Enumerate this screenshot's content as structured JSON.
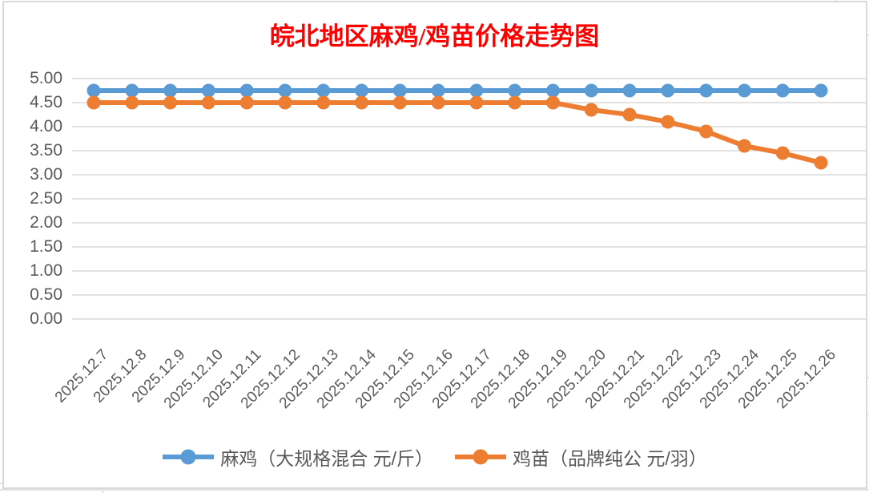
{
  "chart_data": {
    "type": "line",
    "title": "皖北地区麻鸡/鸡苗价格走势图",
    "title_color": "#FF0000",
    "categories": [
      "2025.12.7",
      "2025.12.8",
      "2025.12.9",
      "2025.12.10",
      "2025.12.11",
      "2025.12.12",
      "2025.12.13",
      "2025.12.14",
      "2025.12.15",
      "2025.12.16",
      "2025.12.17",
      "2025.12.18",
      "2025.12.19",
      "2025.12.20",
      "2025.12.21",
      "2025.12.22",
      "2025.12.23",
      "2025.12.24",
      "2025.12.25",
      "2025.12.26"
    ],
    "series": [
      {
        "name": "麻鸡（大规格混合 元/斤）",
        "color": "#5B9BD5",
        "values": [
          4.75,
          4.75,
          4.75,
          4.75,
          4.75,
          4.75,
          4.75,
          4.75,
          4.75,
          4.75,
          4.75,
          4.75,
          4.75,
          4.75,
          4.75,
          4.75,
          4.75,
          4.75,
          4.75,
          4.75
        ]
      },
      {
        "name": "鸡苗（品牌纯公 元/羽）",
        "color": "#ED7D31",
        "values": [
          4.5,
          4.5,
          4.5,
          4.5,
          4.5,
          4.5,
          4.5,
          4.5,
          4.5,
          4.5,
          4.5,
          4.5,
          4.5,
          4.35,
          4.25,
          4.1,
          3.9,
          3.6,
          3.45,
          3.25
        ]
      }
    ],
    "xlabel": "",
    "ylabel": "",
    "ylim": [
      0,
      5
    ],
    "y_step": 0.5,
    "y_tick_labels": [
      "5.00",
      "4.50",
      "4.00",
      "3.50",
      "3.00",
      "2.50",
      "2.00",
      "1.50",
      "1.00",
      "0.50",
      "0.00"
    ],
    "grid": true,
    "gridline_color": "#D9D9D9",
    "axis_label_color": "#595959",
    "legend_position": "bottom",
    "marker": "circle"
  }
}
